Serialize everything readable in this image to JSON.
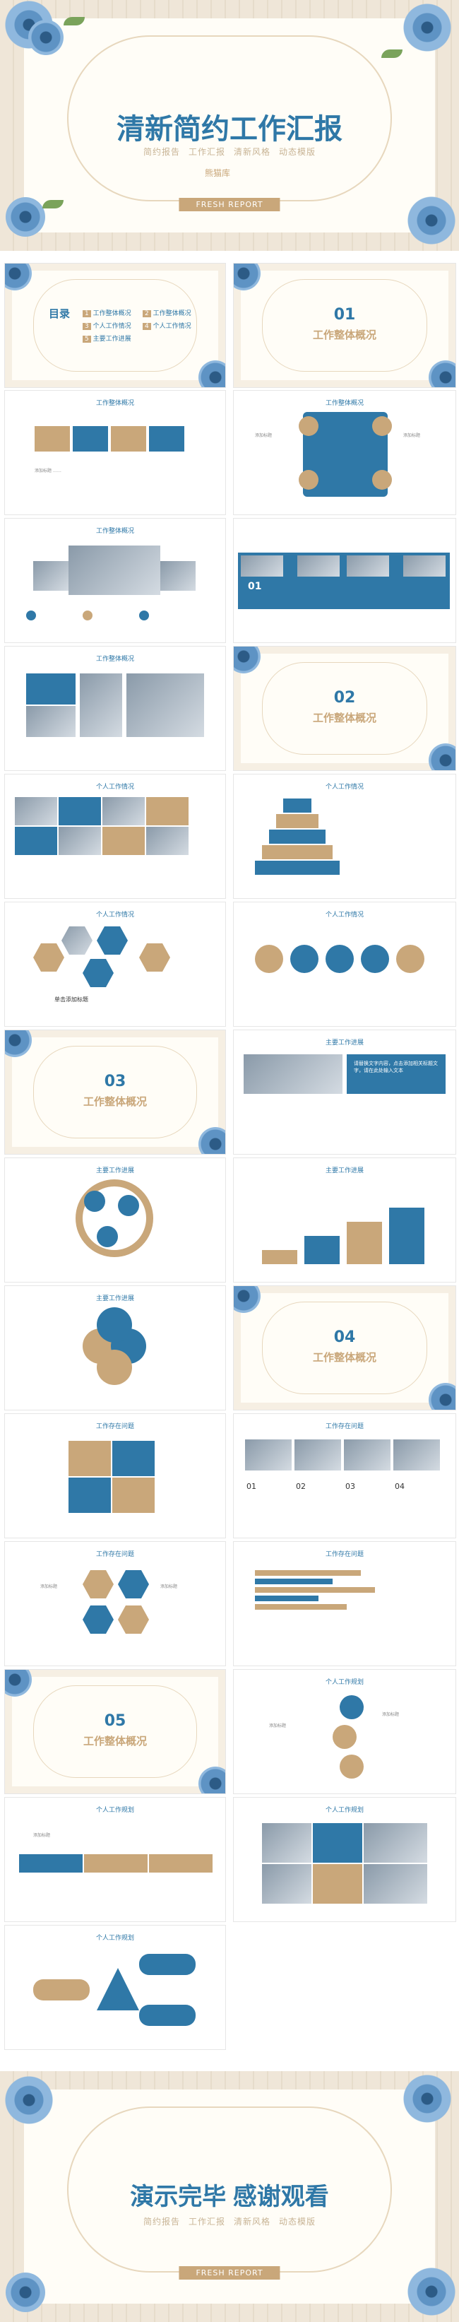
{
  "cover": {
    "title": "清新简约工作汇报",
    "subtitle_items": [
      "简约报告",
      "工作汇报",
      "清新风格",
      "动态模版"
    ],
    "logo_text": "熊猫库",
    "pill": "FRESH REPORT"
  },
  "toc": {
    "title": "目录",
    "items": [
      "工作整体概况",
      "工作整体概况",
      "个人工作情况",
      "个人工作情况",
      "主要工作进展"
    ]
  },
  "sections": [
    {
      "num": "01",
      "title": "工作整体概况"
    },
    {
      "num": "02",
      "title": "工作整体概况"
    },
    {
      "num": "03",
      "title": "工作整体概况"
    },
    {
      "num": "04",
      "title": "工作整体概况"
    },
    {
      "num": "05",
      "title": "工作整体概况"
    }
  ],
  "thumb_titles": {
    "overview": "工作整体概况",
    "personal": "个人工作情况",
    "progress": "主要工作进展",
    "problems": "工作存在问题",
    "plan": "个人工作规划"
  },
  "labels": {
    "add_title": "添加标题",
    "title_here": "Title Here",
    "add_text": "添加文本",
    "single_title": "单击添加标题",
    "quote": "请替换文字内容，点击添加相关标题文字，请在此处输入文本"
  },
  "numbers": [
    "01",
    "02",
    "03",
    "04"
  ],
  "end": {
    "title": "演示完毕 感谢观看",
    "subtitle_items": [
      "简约报告",
      "工作汇报",
      "清新风格",
      "动态模版"
    ],
    "pill": "FRESH REPORT"
  },
  "colors": {
    "blue": "#2f78a7",
    "tan": "#c9a77a",
    "cream": "#fffdf7"
  }
}
